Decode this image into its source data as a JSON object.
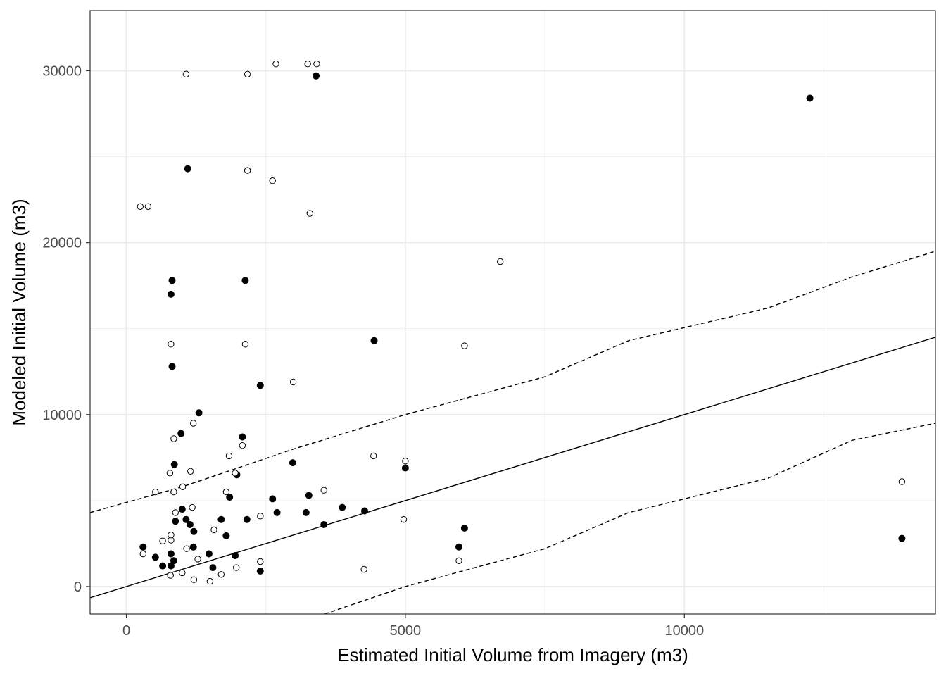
{
  "chart_data": {
    "type": "scatter",
    "xlabel": "Estimated Initial Volume from Imagery (m3)",
    "ylabel": "Modeled Initial Volume (m3)",
    "xlim": [
      -650,
      14500
    ],
    "ylim": [
      -1600,
      33500
    ],
    "x_ticks": [
      0,
      5000,
      10000
    ],
    "y_ticks": [
      0,
      10000,
      20000,
      30000
    ],
    "x_tick_labels": [
      "0",
      "5000",
      "10000"
    ],
    "y_tick_labels": [
      "0",
      "10000",
      "20000",
      "30000"
    ],
    "grid": true,
    "theme": "bw",
    "colors": {
      "points": "#000000",
      "grid": "#ebebeb",
      "panel_border": "#333333"
    },
    "series": [
      {
        "marker": "filled-circle",
        "points": [
          [
            300,
            2300
          ],
          [
            520,
            1700
          ],
          [
            650,
            1200
          ],
          [
            800,
            1900
          ],
          [
            800,
            1200
          ],
          [
            820,
            17800
          ],
          [
            800,
            17000
          ],
          [
            820,
            12800
          ],
          [
            850,
            1500
          ],
          [
            860,
            7100
          ],
          [
            880,
            3800
          ],
          [
            980,
            8900
          ],
          [
            1000,
            4500
          ],
          [
            1070,
            3900
          ],
          [
            1100,
            24300
          ],
          [
            1140,
            3600
          ],
          [
            1200,
            2300
          ],
          [
            1210,
            3200
          ],
          [
            1300,
            10100
          ],
          [
            1480,
            1900
          ],
          [
            1550,
            1100
          ],
          [
            1700,
            3900
          ],
          [
            1790,
            2950
          ],
          [
            1850,
            5200
          ],
          [
            1950,
            1800
          ],
          [
            1980,
            6500
          ],
          [
            2080,
            8700
          ],
          [
            2130,
            17800
          ],
          [
            2160,
            3900
          ],
          [
            2400,
            11700
          ],
          [
            2400,
            900
          ],
          [
            2620,
            5100
          ],
          [
            2700,
            4300
          ],
          [
            2980,
            7200
          ],
          [
            3220,
            4300
          ],
          [
            3270,
            5300
          ],
          [
            3400,
            29700
          ],
          [
            3540,
            3600
          ],
          [
            3870,
            4600
          ],
          [
            4270,
            4400
          ],
          [
            4440,
            14300
          ],
          [
            5000,
            6900
          ],
          [
            5960,
            2300
          ],
          [
            6060,
            3400
          ],
          [
            12250,
            28400
          ],
          [
            13900,
            2800
          ]
        ]
      },
      {
        "marker": "open-circle",
        "points": [
          [
            250,
            22100
          ],
          [
            390,
            22100
          ],
          [
            300,
            1900
          ],
          [
            520,
            5500
          ],
          [
            650,
            2650
          ],
          [
            780,
            6600
          ],
          [
            790,
            650
          ],
          [
            800,
            14100
          ],
          [
            800,
            2700
          ],
          [
            800,
            3000
          ],
          [
            850,
            5500
          ],
          [
            850,
            8600
          ],
          [
            880,
            4300
          ],
          [
            1000,
            800
          ],
          [
            1010,
            5800
          ],
          [
            1070,
            29800
          ],
          [
            1080,
            2200
          ],
          [
            1150,
            6700
          ],
          [
            1180,
            4600
          ],
          [
            1200,
            9500
          ],
          [
            1210,
            400
          ],
          [
            1280,
            1600
          ],
          [
            1500,
            300
          ],
          [
            1570,
            3300
          ],
          [
            1700,
            700
          ],
          [
            1790,
            5500
          ],
          [
            1840,
            7600
          ],
          [
            1950,
            6600
          ],
          [
            1970,
            1100
          ],
          [
            2080,
            8200
          ],
          [
            2130,
            14100
          ],
          [
            2170,
            24200
          ],
          [
            2170,
            29800
          ],
          [
            2400,
            4100
          ],
          [
            2400,
            1450
          ],
          [
            2620,
            23600
          ],
          [
            2680,
            30400
          ],
          [
            2990,
            11900
          ],
          [
            3250,
            30400
          ],
          [
            3290,
            21700
          ],
          [
            3410,
            30400
          ],
          [
            3540,
            5600
          ],
          [
            4260,
            1000
          ],
          [
            4430,
            7600
          ],
          [
            4970,
            3900
          ],
          [
            5000,
            7300
          ],
          [
            5960,
            1500
          ],
          [
            6060,
            14000
          ],
          [
            6700,
            18900
          ],
          [
            13900,
            6100
          ]
        ]
      }
    ],
    "lines": [
      {
        "style": "solid",
        "x": [
          -650,
          14500
        ],
        "y": [
          -650,
          14500
        ]
      },
      {
        "style": "dashed",
        "x": [
          -650,
          1000,
          3000,
          5000,
          7500,
          9000,
          11500,
          13000,
          14500
        ],
        "y": [
          4300,
          5800,
          8000,
          10000,
          12200,
          14300,
          16200,
          18000,
          19500
        ]
      },
      {
        "style": "dashed",
        "x": [
          3550,
          5000,
          7500,
          9000,
          11500,
          13000,
          14500
        ],
        "y": [
          -1600,
          0,
          2200,
          4300,
          6300,
          8500,
          9500
        ]
      }
    ]
  }
}
